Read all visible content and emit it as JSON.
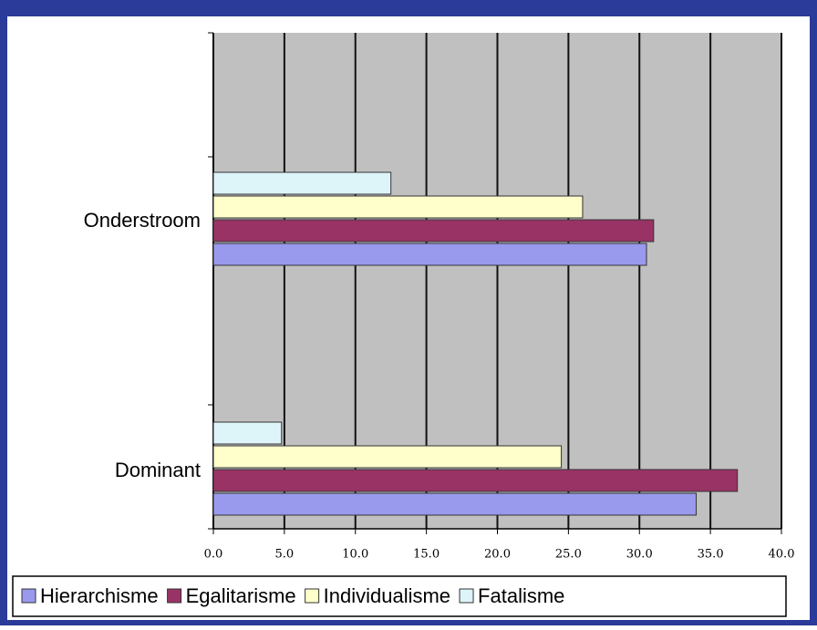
{
  "chart_data": {
    "type": "barh",
    "categories": [
      "Dominant",
      "Onderstroom"
    ],
    "series": [
      {
        "name": "Hierarchisme",
        "color": "#9999ee",
        "values": [
          34.0,
          30.5
        ]
      },
      {
        "name": "Egalitarisme",
        "color": "#993366",
        "values": [
          36.9,
          31.0
        ]
      },
      {
        "name": "Individualisme",
        "color": "#ffffcc",
        "values": [
          24.5,
          26.0
        ]
      },
      {
        "name": "Fatalisme",
        "color": "#ddf4f8",
        "values": [
          4.8,
          12.5
        ]
      }
    ],
    "xlim": [
      0,
      40
    ],
    "xticks": [
      {
        "value": 0,
        "label": "0.0"
      },
      {
        "value": 5,
        "label": "5.0"
      },
      {
        "value": 10,
        "label": "10.0"
      },
      {
        "value": 15,
        "label": "15.0"
      },
      {
        "value": 20,
        "label": "20.0"
      },
      {
        "value": 25,
        "label": "25.0"
      },
      {
        "value": 30,
        "label": "30.0"
      },
      {
        "value": 35,
        "label": "35.0"
      },
      {
        "value": 40,
        "label": "40.0"
      }
    ],
    "grid": true,
    "legend": "bottom"
  }
}
